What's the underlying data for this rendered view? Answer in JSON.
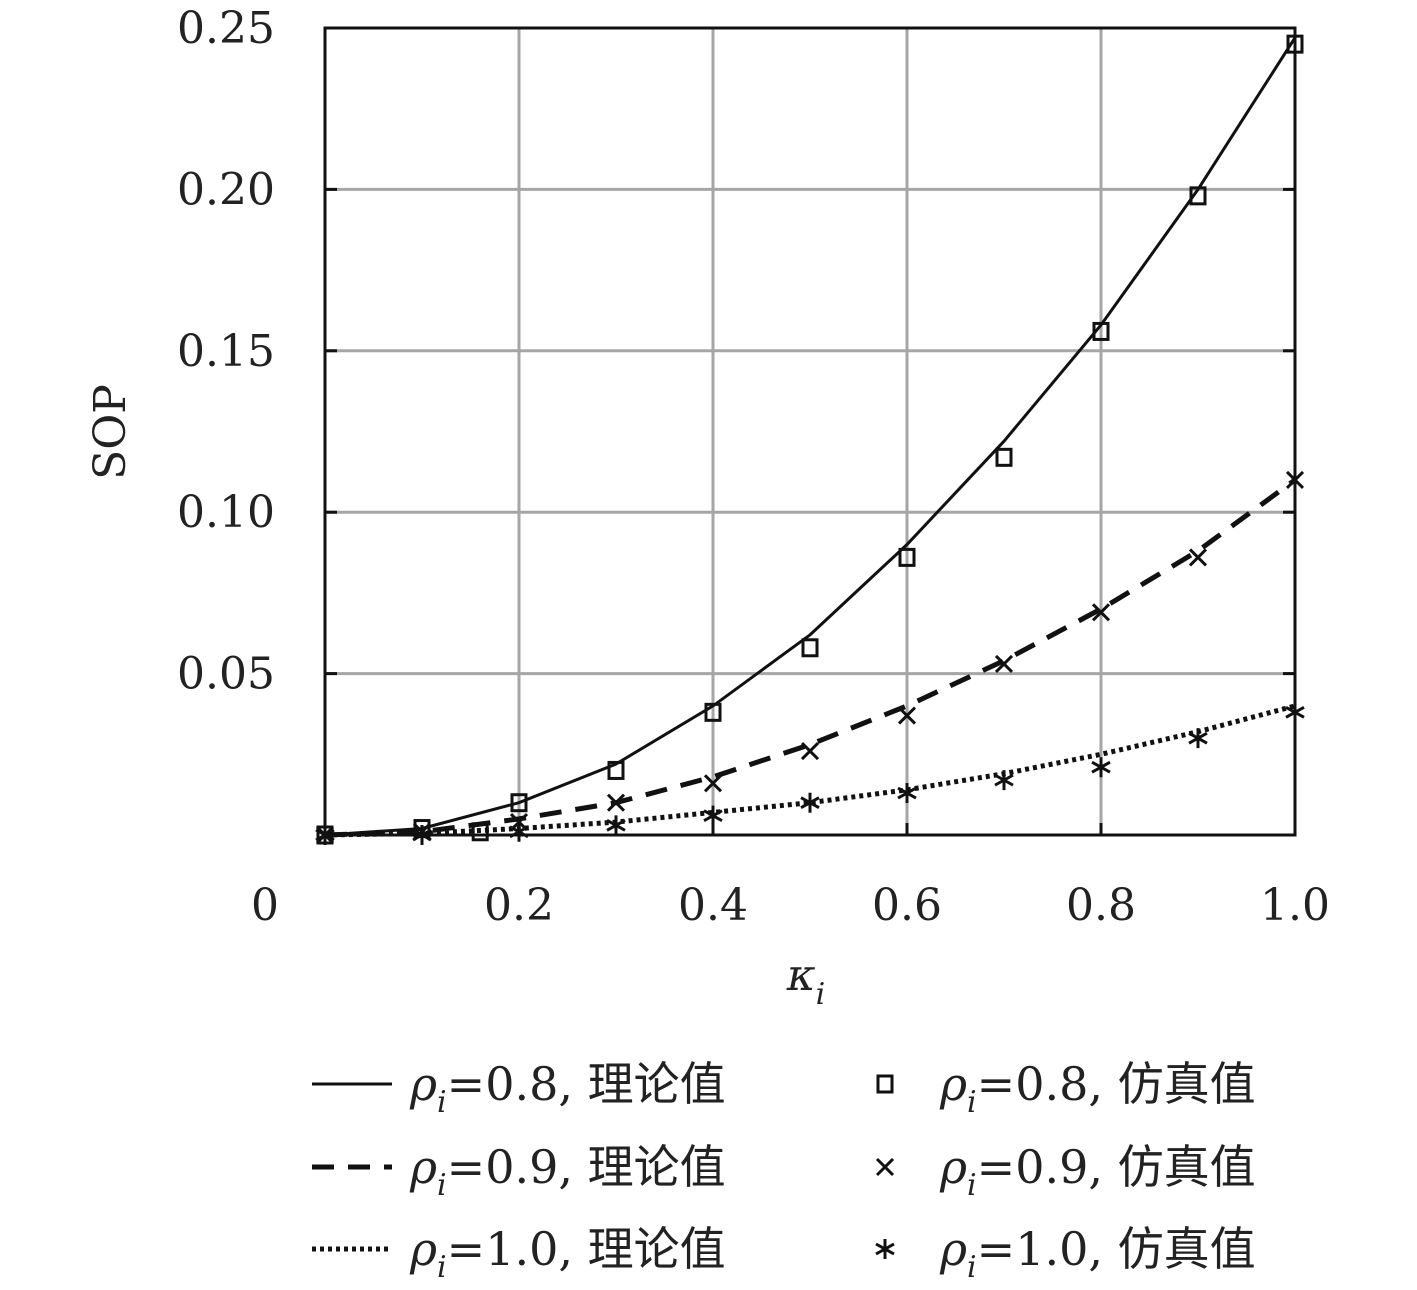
{
  "chart_data": {
    "type": "line",
    "xlabel": "κ",
    "xlabel_sub": "i",
    "ylabel": "SOP",
    "xlim": [
      0,
      1.0
    ],
    "ylim": [
      0,
      0.25
    ],
    "xticks": [
      0.2,
      0.4,
      0.6,
      0.8,
      1.0
    ],
    "xtick_labels": [
      "0.2",
      "0.4",
      "0.6",
      "0.8",
      "1.0"
    ],
    "origin_label": "0",
    "yticks": [
      0.05,
      0.1,
      0.15,
      0.2,
      0.25
    ],
    "ytick_labels": [
      "0.05",
      "0.10",
      "0.15",
      "0.20",
      "0.25"
    ],
    "grid": true,
    "legend_position": "bottom",
    "series": [
      {
        "name": "ρi=0.8, 理论值",
        "kind": "line",
        "style": "solid",
        "x": [
          0.0,
          0.1,
          0.2,
          0.3,
          0.4,
          0.5,
          0.6,
          0.7,
          0.8,
          0.9,
          1.0
        ],
        "y": [
          0.0,
          0.002,
          0.01,
          0.022,
          0.04,
          0.062,
          0.09,
          0.122,
          0.158,
          0.2,
          0.247
        ]
      },
      {
        "name": "ρi=0.8, 仿真值",
        "kind": "marker",
        "marker": "square",
        "x": [
          0.0,
          0.1,
          0.16,
          0.2,
          0.3,
          0.4,
          0.5,
          0.6,
          0.7,
          0.8,
          0.9,
          1.0
        ],
        "y": [
          0.0,
          0.002,
          0.001,
          0.01,
          0.02,
          0.038,
          0.058,
          0.086,
          0.117,
          0.156,
          0.198,
          0.245
        ]
      },
      {
        "name": "ρi=0.9, 理论值",
        "kind": "line",
        "style": "dashed",
        "x": [
          0.0,
          0.1,
          0.2,
          0.3,
          0.4,
          0.5,
          0.6,
          0.7,
          0.8,
          0.9,
          1.0
        ],
        "y": [
          0.0,
          0.001,
          0.005,
          0.01,
          0.018,
          0.028,
          0.04,
          0.054,
          0.07,
          0.088,
          0.11
        ]
      },
      {
        "name": "ρi=0.9, 仿真值",
        "kind": "marker",
        "marker": "x",
        "x": [
          0.0,
          0.1,
          0.2,
          0.3,
          0.4,
          0.5,
          0.6,
          0.7,
          0.8,
          0.9,
          1.0
        ],
        "y": [
          0.0,
          0.001,
          0.004,
          0.01,
          0.016,
          0.026,
          0.037,
          0.053,
          0.069,
          0.086,
          0.11
        ]
      },
      {
        "name": "ρi=1.0, 理论值",
        "kind": "line",
        "style": "dotted",
        "x": [
          0.0,
          0.1,
          0.2,
          0.3,
          0.4,
          0.5,
          0.6,
          0.7,
          0.8,
          0.9,
          1.0
        ],
        "y": [
          0.0,
          0.0005,
          0.002,
          0.004,
          0.007,
          0.01,
          0.014,
          0.019,
          0.025,
          0.032,
          0.04
        ]
      },
      {
        "name": "ρi=1.0, 仿真值",
        "kind": "marker",
        "marker": "asterisk",
        "x": [
          0.0,
          0.1,
          0.2,
          0.3,
          0.4,
          0.5,
          0.6,
          0.7,
          0.8,
          0.9,
          1.0
        ],
        "y": [
          0.0,
          0.0,
          0.001,
          0.003,
          0.006,
          0.01,
          0.013,
          0.017,
          0.021,
          0.03,
          0.038
        ]
      }
    ],
    "legend": [
      {
        "series": 0,
        "prefix": "ρ",
        "sub": "i",
        "text": "=0.8, 理论值"
      },
      {
        "series": 1,
        "prefix": "ρ",
        "sub": "i",
        "text": "=0.8, 仿真值"
      },
      {
        "series": 2,
        "prefix": "ρ",
        "sub": "i",
        "text": "=0.9, 理论值"
      },
      {
        "series": 3,
        "prefix": "ρ",
        "sub": "i",
        "text": "=0.9, 仿真值"
      },
      {
        "series": 4,
        "prefix": "ρ",
        "sub": "i",
        "text": "=1.0, 理论值"
      },
      {
        "series": 5,
        "prefix": "ρ",
        "sub": "i",
        "text": "=1.0, 仿真值"
      }
    ]
  }
}
